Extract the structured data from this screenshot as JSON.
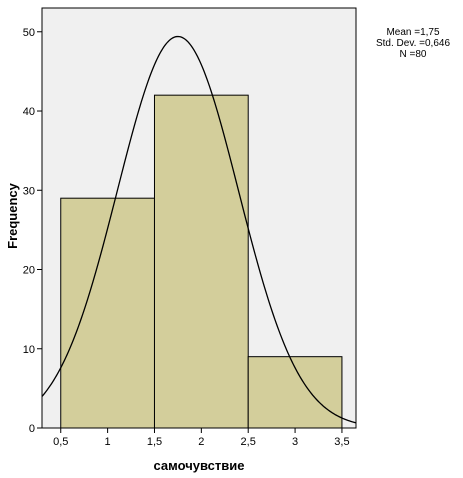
{
  "chart_data": {
    "type": "bar",
    "subtype": "histogram",
    "xlabel": "самочувствие",
    "ylabel": "Frequency",
    "bins": [
      {
        "from": 0.5,
        "to": 1.5,
        "value": 29
      },
      {
        "from": 1.5,
        "to": 2.5,
        "value": 42
      },
      {
        "from": 2.5,
        "to": 3.5,
        "value": 9
      }
    ],
    "xlim": [
      0.3,
      3.65
    ],
    "ylim": [
      0,
      53
    ],
    "x_ticks": [
      {
        "value": 0.5,
        "label": "0,5"
      },
      {
        "value": 1,
        "label": "1"
      },
      {
        "value": 1.5,
        "label": "1,5"
      },
      {
        "value": 2,
        "label": "2"
      },
      {
        "value": 2.5,
        "label": "2,5"
      },
      {
        "value": 3,
        "label": "3"
      },
      {
        "value": 3.5,
        "label": "3,5"
      }
    ],
    "y_ticks": [
      {
        "value": 0,
        "label": "0"
      },
      {
        "value": 10,
        "label": "10"
      },
      {
        "value": 20,
        "label": "20"
      },
      {
        "value": 30,
        "label": "30"
      },
      {
        "value": 40,
        "label": "40"
      },
      {
        "value": 50,
        "label": "50"
      }
    ],
    "normal_curve": {
      "mean": 1.75,
      "std_dev": 0.646,
      "n": 80,
      "bin_width": 1
    },
    "stats_lines": [
      "Mean =1,75",
      "Std. Dev. =0,646",
      "N =80"
    ],
    "grid": false,
    "colors": {
      "plot_background": "#f0f0f0",
      "bar_fill": "#d3ce9b",
      "bar_stroke": "#000000",
      "curve": "#000000"
    }
  }
}
